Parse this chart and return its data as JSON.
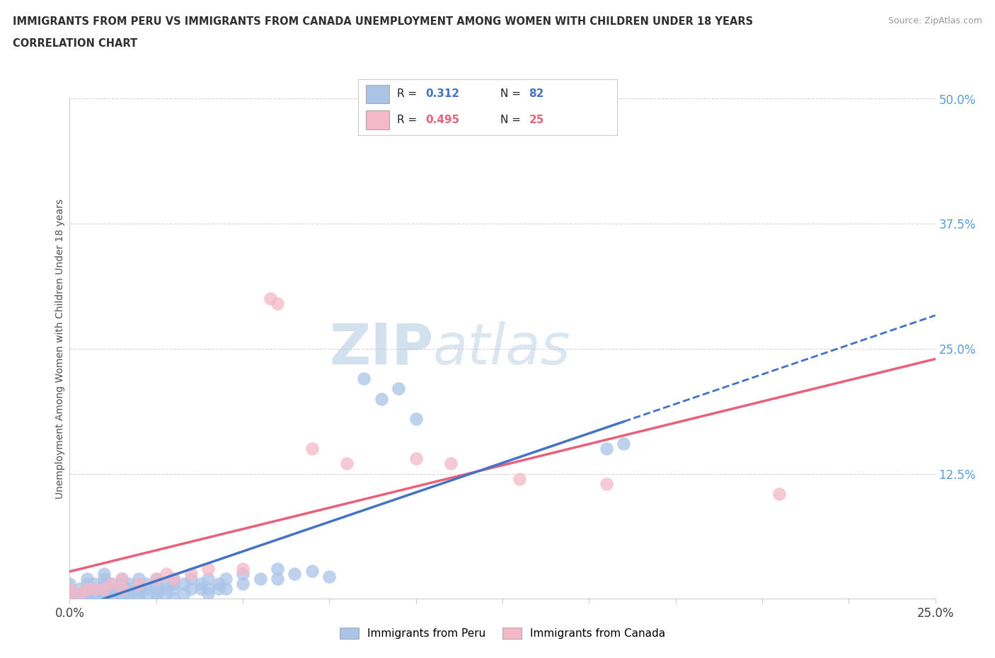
{
  "title_line1": "IMMIGRANTS FROM PERU VS IMMIGRANTS FROM CANADA UNEMPLOYMENT AMONG WOMEN WITH CHILDREN UNDER 18 YEARS",
  "title_line2": "CORRELATION CHART",
  "source_text": "Source: ZipAtlas.com",
  "ylabel": "Unemployment Among Women with Children Under 18 years",
  "xlim": [
    0.0,
    0.25
  ],
  "ylim": [
    0.0,
    0.5
  ],
  "xticks": [
    0.0,
    0.025,
    0.05,
    0.075,
    0.1,
    0.125,
    0.15,
    0.175,
    0.2,
    0.225,
    0.25
  ],
  "yticks": [
    0.0,
    0.125,
    0.25,
    0.375,
    0.5
  ],
  "ytick_labels": [
    "",
    "12.5%",
    "25.0%",
    "37.5%",
    "50.0%"
  ],
  "peru_color": "#aac4e8",
  "canada_color": "#f4b8c8",
  "peru_R": 0.312,
  "peru_N": 82,
  "canada_R": 0.495,
  "canada_N": 25,
  "peru_scatter": [
    [
      0.0,
      0.0
    ],
    [
      0.0,
      0.005
    ],
    [
      0.0,
      0.01
    ],
    [
      0.0,
      0.015
    ],
    [
      0.003,
      0.0
    ],
    [
      0.003,
      0.005
    ],
    [
      0.003,
      0.01
    ],
    [
      0.005,
      0.0
    ],
    [
      0.005,
      0.005
    ],
    [
      0.005,
      0.01
    ],
    [
      0.005,
      0.015
    ],
    [
      0.005,
      0.02
    ],
    [
      0.007,
      0.0
    ],
    [
      0.007,
      0.005
    ],
    [
      0.007,
      0.01
    ],
    [
      0.007,
      0.015
    ],
    [
      0.01,
      0.0
    ],
    [
      0.01,
      0.005
    ],
    [
      0.01,
      0.01
    ],
    [
      0.01,
      0.015
    ],
    [
      0.01,
      0.02
    ],
    [
      0.01,
      0.025
    ],
    [
      0.012,
      0.0
    ],
    [
      0.012,
      0.005
    ],
    [
      0.012,
      0.01
    ],
    [
      0.012,
      0.015
    ],
    [
      0.015,
      0.0
    ],
    [
      0.015,
      0.005
    ],
    [
      0.015,
      0.01
    ],
    [
      0.015,
      0.015
    ],
    [
      0.015,
      0.02
    ],
    [
      0.017,
      0.0
    ],
    [
      0.017,
      0.005
    ],
    [
      0.017,
      0.01
    ],
    [
      0.017,
      0.015
    ],
    [
      0.02,
      0.0
    ],
    [
      0.02,
      0.005
    ],
    [
      0.02,
      0.01
    ],
    [
      0.02,
      0.015
    ],
    [
      0.02,
      0.02
    ],
    [
      0.022,
      0.005
    ],
    [
      0.022,
      0.01
    ],
    [
      0.022,
      0.015
    ],
    [
      0.025,
      0.0
    ],
    [
      0.025,
      0.005
    ],
    [
      0.025,
      0.01
    ],
    [
      0.025,
      0.015
    ],
    [
      0.025,
      0.02
    ],
    [
      0.028,
      0.005
    ],
    [
      0.028,
      0.01
    ],
    [
      0.028,
      0.015
    ],
    [
      0.03,
      0.0
    ],
    [
      0.03,
      0.01
    ],
    [
      0.03,
      0.015
    ],
    [
      0.03,
      0.02
    ],
    [
      0.033,
      0.005
    ],
    [
      0.033,
      0.015
    ],
    [
      0.035,
      0.01
    ],
    [
      0.035,
      0.02
    ],
    [
      0.038,
      0.01
    ],
    [
      0.038,
      0.015
    ],
    [
      0.04,
      0.005
    ],
    [
      0.04,
      0.01
    ],
    [
      0.04,
      0.02
    ],
    [
      0.043,
      0.01
    ],
    [
      0.043,
      0.015
    ],
    [
      0.045,
      0.01
    ],
    [
      0.045,
      0.02
    ],
    [
      0.05,
      0.015
    ],
    [
      0.05,
      0.025
    ],
    [
      0.055,
      0.02
    ],
    [
      0.06,
      0.02
    ],
    [
      0.06,
      0.03
    ],
    [
      0.065,
      0.025
    ],
    [
      0.07,
      0.028
    ],
    [
      0.075,
      0.022
    ],
    [
      0.085,
      0.22
    ],
    [
      0.09,
      0.2
    ],
    [
      0.095,
      0.21
    ],
    [
      0.1,
      0.18
    ],
    [
      0.155,
      0.15
    ],
    [
      0.16,
      0.155
    ]
  ],
  "canada_scatter": [
    [
      0.0,
      0.005
    ],
    [
      0.0,
      0.01
    ],
    [
      0.003,
      0.005
    ],
    [
      0.005,
      0.01
    ],
    [
      0.007,
      0.01
    ],
    [
      0.01,
      0.01
    ],
    [
      0.012,
      0.015
    ],
    [
      0.015,
      0.01
    ],
    [
      0.015,
      0.02
    ],
    [
      0.02,
      0.015
    ],
    [
      0.025,
      0.02
    ],
    [
      0.028,
      0.025
    ],
    [
      0.03,
      0.02
    ],
    [
      0.035,
      0.025
    ],
    [
      0.04,
      0.03
    ],
    [
      0.05,
      0.03
    ],
    [
      0.058,
      0.3
    ],
    [
      0.06,
      0.295
    ],
    [
      0.07,
      0.15
    ],
    [
      0.08,
      0.135
    ],
    [
      0.1,
      0.14
    ],
    [
      0.11,
      0.135
    ],
    [
      0.13,
      0.12
    ],
    [
      0.155,
      0.115
    ],
    [
      0.205,
      0.105
    ]
  ],
  "background_color": "#ffffff",
  "grid_color": "#d8d8d8",
  "watermark_zip": "ZIP",
  "watermark_atlas": "atlas",
  "watermark_color": "#c8d8e8",
  "title_color": "#303030",
  "ylabel_color": "#505050",
  "right_tick_color": "#5b9bd5",
  "peru_line_color": "#4472c4",
  "canada_line_color": "#e8607a",
  "peru_line_solid_end": 0.16,
  "legend_peru_color": "#aac4e8",
  "legend_canada_color": "#f4b8c8"
}
